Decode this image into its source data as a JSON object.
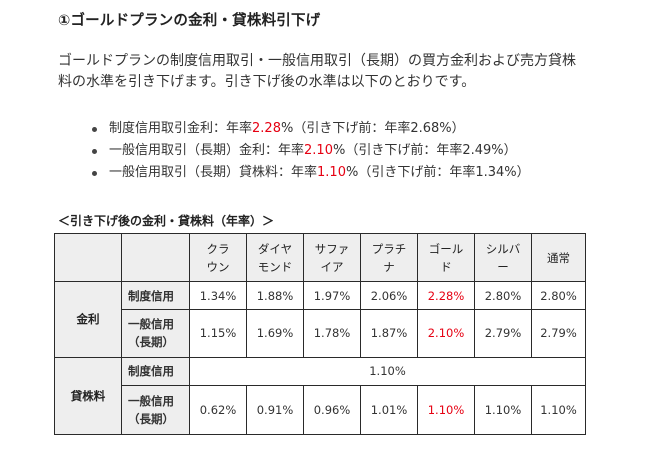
{
  "title": "①ゴールドプランの金利・貸株料引下げ",
  "intro": "ゴールドプランの制度信用取引・一般信用取引（長期）の買方金利および売方貸株料の水準を引き下げます。引き下げ後の水準は以下のとおりです。",
  "bullets": [
    {
      "prefix": "制度信用取引金利：年率",
      "highlight": "2.28",
      "suffix": "%（引き下げ前：年率2.68%）"
    },
    {
      "prefix": "一般信用取引（長期）金利：年率",
      "highlight": "2.10",
      "suffix": "%（引き下げ前：年率2.49%）"
    },
    {
      "prefix": "一般信用取引（長期）貸株料：年率",
      "highlight": "1.10",
      "suffix": "%（引き下げ前：年率1.34%）"
    }
  ],
  "table_caption": "＜引き下げ後の金利・貸株料（年率）＞",
  "table": {
    "columns": [
      "クラウン",
      "ダイヤモンド",
      "サファイア",
      "プラチナ",
      "ゴールド",
      "シルバー",
      "通常"
    ],
    "column_display": [
      "クラ\nウン",
      "ダイヤ\nモンド",
      "サファ\nイア",
      "プラチ\nナ",
      "ゴール\nド",
      "シルバ\nー",
      "通常"
    ],
    "sections": [
      {
        "label": "金利",
        "rows": [
          {
            "label": "制度信用",
            "label_display": "制度信用",
            "values": [
              "1.34%",
              "1.88%",
              "1.97%",
              "2.06%",
              "2.28%",
              "2.80%",
              "2.80%"
            ]
          },
          {
            "label": "一般信用（長期）",
            "label_display": "一般信用\n（長期）",
            "values": [
              "1.15%",
              "1.69%",
              "1.78%",
              "1.87%",
              "2.10%",
              "2.79%",
              "2.79%"
            ]
          }
        ]
      },
      {
        "label": "貸株料",
        "rows": [
          {
            "label": "制度信用",
            "label_display": "制度信用",
            "merged_value": "1.10%"
          },
          {
            "label": "一般信用（長期）",
            "label_display": "一般信用\n（長期）",
            "values": [
              "0.62%",
              "0.91%",
              "0.96%",
              "1.01%",
              "1.10%",
              "1.10%",
              "1.10%"
            ]
          }
        ]
      }
    ],
    "highlight_column": "ゴールド"
  },
  "colors": {
    "highlight": "#e60012",
    "header_bg": "#eeeeee",
    "border": "#2a2a2a",
    "text": "#333333"
  }
}
